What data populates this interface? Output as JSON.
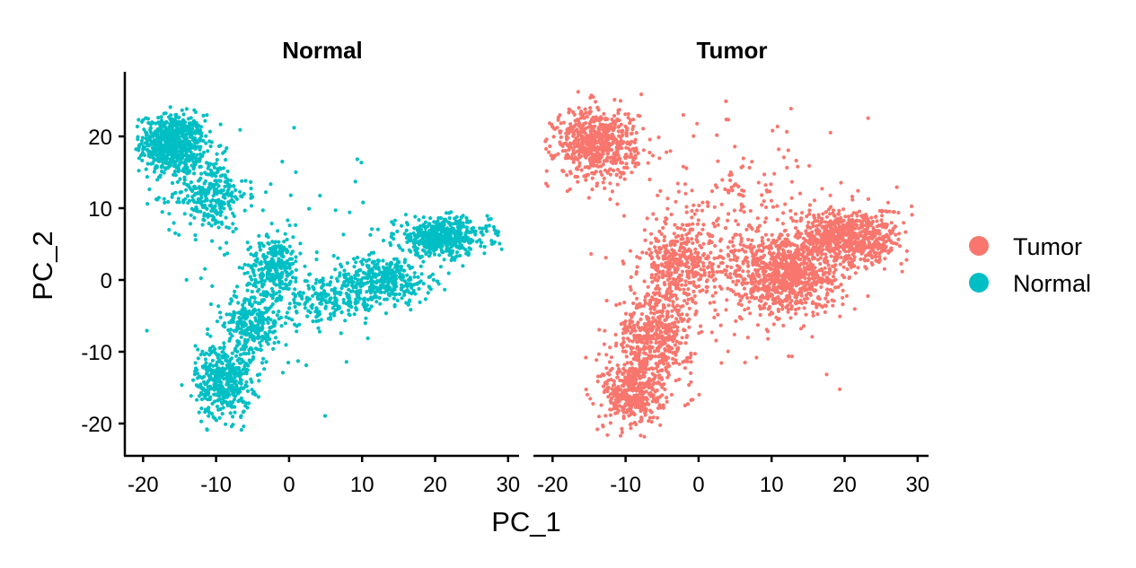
{
  "chart_data": {
    "type": "scatter",
    "xlabel": "PC_1",
    "ylabel": "PC_2",
    "xlim": [
      -22.5,
      31.5
    ],
    "ylim": [
      -24.5,
      29
    ],
    "x_ticks": [
      -20,
      -10,
      0,
      10,
      20,
      30
    ],
    "x_tick_labels": [
      "-20",
      "-10",
      "0",
      "10",
      "20",
      "30"
    ],
    "y_ticks": [
      -20,
      -10,
      0,
      10,
      20
    ],
    "y_tick_labels": [
      "-20",
      "-10",
      "0",
      "10",
      "20"
    ],
    "grid": false,
    "legend_position": "right",
    "legend": [
      {
        "name": "Tumor",
        "color": "#F8766D"
      },
      {
        "name": "Normal",
        "color": "#00BFC4"
      }
    ],
    "panels": [
      {
        "title": "Normal",
        "series": "Normal",
        "color": "#00BFC4",
        "clusters": [
          {
            "cx": -16,
            "cy": 19,
            "sx": 2.2,
            "sy": 2.0,
            "n": 700
          },
          {
            "cx": -11,
            "cy": 12,
            "sx": 2.6,
            "sy": 2.6,
            "n": 300
          },
          {
            "cx": -2,
            "cy": 2,
            "sx": 1.8,
            "sy": 2.0,
            "n": 260
          },
          {
            "cx": -5,
            "cy": -6,
            "sx": 2.0,
            "sy": 2.4,
            "n": 300
          },
          {
            "cx": -9,
            "cy": -14,
            "sx": 1.9,
            "sy": 2.6,
            "n": 420
          },
          {
            "cx": 13,
            "cy": 0,
            "sx": 3.2,
            "sy": 1.6,
            "n": 380
          },
          {
            "cx": 21,
            "cy": 6,
            "sx": 3.2,
            "sy": 1.3,
            "n": 480
          },
          {
            "cx": 5,
            "cy": -3,
            "sx": 3.5,
            "sy": 1.5,
            "n": 200
          },
          {
            "cx": 2,
            "cy": 2,
            "sx": 8.0,
            "sy": 8.0,
            "n": 80
          }
        ]
      },
      {
        "title": "Tumor",
        "series": "Tumor",
        "color": "#F8766D",
        "clusters": [
          {
            "cx": -14,
            "cy": 19,
            "sx": 2.8,
            "sy": 2.4,
            "n": 650
          },
          {
            "cx": -3,
            "cy": 2,
            "sx": 2.4,
            "sy": 2.4,
            "n": 320
          },
          {
            "cx": -6,
            "cy": -8,
            "sx": 2.6,
            "sy": 3.2,
            "n": 500
          },
          {
            "cx": -9,
            "cy": -16,
            "sx": 2.0,
            "sy": 2.4,
            "n": 400
          },
          {
            "cx": 12,
            "cy": 1,
            "sx": 3.6,
            "sy": 2.6,
            "n": 800
          },
          {
            "cx": 21,
            "cy": 6,
            "sx": 3.5,
            "sy": 2.0,
            "n": 650
          },
          {
            "cx": 4,
            "cy": 4,
            "sx": 5.0,
            "sy": 6.0,
            "n": 250
          },
          {
            "cx": 5,
            "cy": 5,
            "sx": 9.0,
            "sy": 9.0,
            "n": 150
          }
        ]
      }
    ]
  }
}
